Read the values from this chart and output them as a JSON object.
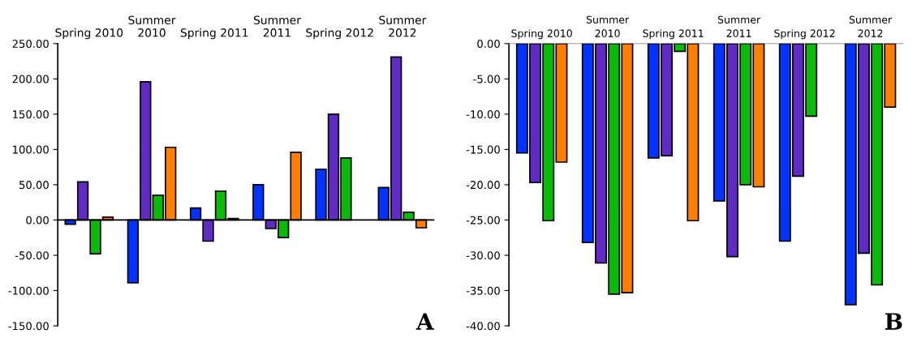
{
  "chart_data": [
    {
      "type": "bar",
      "categories": [
        "Spring 2010",
        "Summer\n2010",
        "Spring 2011",
        "Summer\n2011",
        "Spring 2012",
        "Summer\n2012"
      ],
      "series": [
        {
          "color": "#0033ff",
          "values": [
            -6,
            -89,
            17,
            50,
            72,
            46
          ]
        },
        {
          "color": "#5f2bc3",
          "values": [
            54,
            196,
            -30,
            -12,
            150,
            231
          ]
        },
        {
          "color": "#0ab90a",
          "values": [
            -48,
            35,
            41,
            -25,
            88,
            11
          ]
        },
        {
          "color": "#ff8000",
          "values": [
            4,
            103,
            2,
            96,
            null,
            -11
          ]
        }
      ],
      "ylim": [
        -150,
        250
      ],
      "yticks": [
        {
          "value": -150,
          "label": "-150.00"
        },
        {
          "value": -100,
          "label": "-100.00"
        },
        {
          "value": -50,
          "label": "-50.00"
        },
        {
          "value": 0,
          "label": "0.00"
        },
        {
          "value": 50,
          "label": "50.00"
        },
        {
          "value": 100,
          "label": "100.00"
        },
        {
          "value": 150,
          "label": "150.00"
        },
        {
          "value": 200,
          "label": "200.00"
        },
        {
          "value": 250,
          "label": "250.00"
        }
      ],
      "annotations": [
        "A"
      ],
      "legend": false
    },
    {
      "type": "bar",
      "categories": [
        "Spring 2010",
        "Summer\n2010",
        "Spring 2011",
        "Summer\n2011",
        "Spring 2012",
        "Summer\n2012"
      ],
      "series": [
        {
          "color": "#0033ff",
          "values": [
            -15.5,
            -28.2,
            -16.2,
            -22.3,
            -28.0,
            -37.0
          ]
        },
        {
          "color": "#5f2bc3",
          "values": [
            -19.7,
            -31.1,
            -15.9,
            -30.2,
            -18.8,
            -29.7
          ]
        },
        {
          "color": "#0ab90a",
          "values": [
            -25.1,
            -35.5,
            -1.1,
            -20.0,
            -10.3,
            -34.2
          ]
        },
        {
          "color": "#ff8000",
          "values": [
            -16.8,
            -35.3,
            -25.1,
            -20.3,
            null,
            -9.0
          ]
        }
      ],
      "ylim": [
        -40,
        0
      ],
      "yticks": [
        {
          "value": -40,
          "label": "-40.00"
        },
        {
          "value": -35,
          "label": "-35.00"
        },
        {
          "value": -30,
          "label": "-30.00"
        },
        {
          "value": -25,
          "label": "-25.00"
        },
        {
          "value": -20,
          "label": "-20.00"
        },
        {
          "value": -15,
          "label": "-15.00"
        },
        {
          "value": -10,
          "label": "-10.00"
        },
        {
          "value": -5,
          "label": "-5.00"
        },
        {
          "value": 0,
          "label": "0.00"
        }
      ],
      "annotations": [
        "B"
      ],
      "grid": false,
      "legend": false
    }
  ]
}
